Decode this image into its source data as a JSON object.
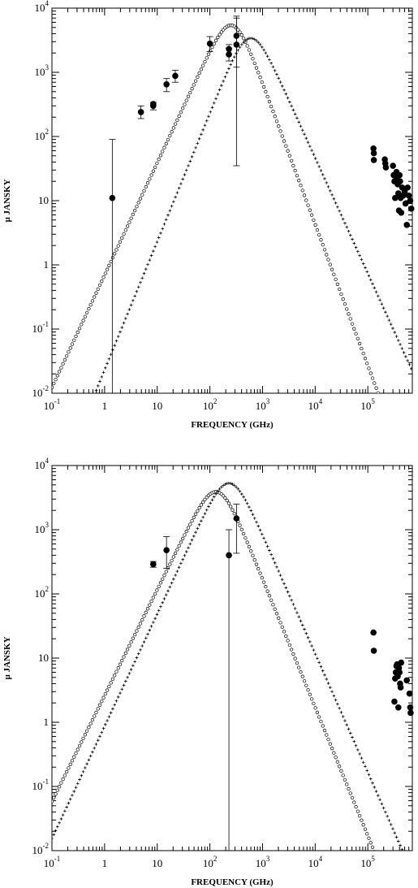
{
  "chart_data": [
    {
      "type": "scatter",
      "title": "",
      "xlabel": "FREQUENCY (GHz)",
      "ylabel": "µ JANSKY",
      "xscale": "log",
      "yscale": "log",
      "xlim": [
        0.1,
        700000
      ],
      "ylim": [
        0.01,
        10000
      ],
      "xticks": [
        {
          "value": 0.1,
          "base": "10",
          "exp": "-1"
        },
        {
          "value": 1,
          "base": "1",
          "exp": ""
        },
        {
          "value": 10,
          "base": "10",
          "exp": ""
        },
        {
          "value": 100,
          "base": "10",
          "exp": "2"
        },
        {
          "value": 1000,
          "base": "10",
          "exp": "3"
        },
        {
          "value": 10000,
          "base": "10",
          "exp": "4"
        },
        {
          "value": 100000,
          "base": "10",
          "exp": "5"
        }
      ],
      "yticks": [
        {
          "value": 0.01,
          "base": "10",
          "exp": "-2"
        },
        {
          "value": 0.1,
          "base": "10",
          "exp": "-1"
        },
        {
          "value": 1,
          "base": "1",
          "exp": ""
        },
        {
          "value": 10,
          "base": "10",
          "exp": ""
        },
        {
          "value": 100,
          "base": "10",
          "exp": "2"
        },
        {
          "value": 1000,
          "base": "10",
          "exp": "3"
        },
        {
          "value": 10000,
          "base": "10",
          "exp": "4"
        }
      ],
      "points": [
        {
          "x": 1.4,
          "y": 11,
          "ylo": 0.01,
          "yhi": 90
        },
        {
          "x": 4.9,
          "y": 240,
          "ylo": 190,
          "yhi": 300
        },
        {
          "x": 8.4,
          "y": 300,
          "ylo": 260,
          "yhi": 340
        },
        {
          "x": 8.4,
          "y": 320
        },
        {
          "x": 15,
          "y": 650,
          "ylo": 500,
          "yhi": 800
        },
        {
          "x": 22,
          "y": 880,
          "ylo": 700,
          "yhi": 1080
        },
        {
          "x": 100,
          "y": 2800,
          "ylo": 2100,
          "yhi": 3600
        },
        {
          "x": 230,
          "y": 1900,
          "ylo": 1500,
          "yhi": 2400
        },
        {
          "x": 230,
          "y": 2300,
          "ylo": 1900,
          "yhi": 2700
        },
        {
          "x": 320,
          "y": 3700,
          "ylo": 1200,
          "yhi": 7500
        },
        {
          "x": 320,
          "y": 2700,
          "ylo": 35,
          "yhi": 7000
        },
        {
          "x": 128000,
          "y": 65
        },
        {
          "x": 130000,
          "y": 55
        },
        {
          "x": 130000,
          "y": 43
        },
        {
          "x": 210000,
          "y": 44
        },
        {
          "x": 215000,
          "y": 38
        },
        {
          "x": 220000,
          "y": 33
        },
        {
          "x": 300000,
          "y": 35
        },
        {
          "x": 310000,
          "y": 25
        },
        {
          "x": 320000,
          "y": 20
        },
        {
          "x": 330000,
          "y": 11
        },
        {
          "x": 350000,
          "y": 28
        },
        {
          "x": 360000,
          "y": 22
        },
        {
          "x": 370000,
          "y": 18
        },
        {
          "x": 380000,
          "y": 13
        },
        {
          "x": 390000,
          "y": 7
        },
        {
          "x": 400000,
          "y": 25
        },
        {
          "x": 410000,
          "y": 20
        },
        {
          "x": 420000,
          "y": 11
        },
        {
          "x": 430000,
          "y": 6.5
        },
        {
          "x": 450000,
          "y": 16
        },
        {
          "x": 470000,
          "y": 12
        },
        {
          "x": 500000,
          "y": 14
        },
        {
          "x": 520000,
          "y": 9
        },
        {
          "x": 550000,
          "y": 4.2
        },
        {
          "x": 570000,
          "y": 16
        },
        {
          "x": 600000,
          "y": 12
        },
        {
          "x": 640000,
          "y": 10
        },
        {
          "x": 670000,
          "y": 7.5
        }
      ],
      "series": [
        {
          "marker": "circle",
          "peak_x": 250,
          "peak_y": 5400,
          "low_slope": 1.75,
          "high_slope": -2.2
        },
        {
          "marker": "cross",
          "peak_x": 600,
          "peak_y": 3400,
          "low_slope": 2.0,
          "high_slope": -1.8
        }
      ]
    },
    {
      "type": "scatter",
      "title": "",
      "xlabel": "FREQUENCY (GHz)",
      "ylabel": "µ JANSKY",
      "xscale": "log",
      "yscale": "log",
      "xlim": [
        0.1,
        700000
      ],
      "ylim": [
        0.01,
        10000
      ],
      "xticks": [
        {
          "value": 0.1,
          "base": "10",
          "exp": "-1"
        },
        {
          "value": 1,
          "base": "1",
          "exp": ""
        },
        {
          "value": 10,
          "base": "10",
          "exp": ""
        },
        {
          "value": 100,
          "base": "10",
          "exp": "2"
        },
        {
          "value": 1000,
          "base": "10",
          "exp": "3"
        },
        {
          "value": 10000,
          "base": "10",
          "exp": "4"
        },
        {
          "value": 100000,
          "base": "10",
          "exp": "5"
        }
      ],
      "yticks": [
        {
          "value": 0.01,
          "base": "10",
          "exp": "-2"
        },
        {
          "value": 0.1,
          "base": "10",
          "exp": "-1"
        },
        {
          "value": 1,
          "base": "1",
          "exp": ""
        },
        {
          "value": 10,
          "base": "10",
          "exp": ""
        },
        {
          "value": 100,
          "base": "10",
          "exp": "2"
        },
        {
          "value": 1000,
          "base": "10",
          "exp": "3"
        },
        {
          "value": 10000,
          "base": "10",
          "exp": "4"
        }
      ],
      "points": [
        {
          "x": 8.4,
          "y": 290,
          "ylo": 260,
          "yhi": 320
        },
        {
          "x": 15,
          "y": 480,
          "ylo": 250,
          "yhi": 780
        },
        {
          "x": 230,
          "y": 400,
          "ylo": 0.01,
          "yhi": 1000
        },
        {
          "x": 320,
          "y": 1500,
          "ylo": 430,
          "yhi": 2500
        },
        {
          "x": 128000,
          "y": 25
        },
        {
          "x": 130000,
          "y": 13
        },
        {
          "x": 320000,
          "y": 2.1
        },
        {
          "x": 330000,
          "y": 4.8
        },
        {
          "x": 340000,
          "y": 6
        },
        {
          "x": 350000,
          "y": 7.5
        },
        {
          "x": 360000,
          "y": 8
        },
        {
          "x": 370000,
          "y": 5.2
        },
        {
          "x": 380000,
          "y": 1.7
        },
        {
          "x": 390000,
          "y": 7
        },
        {
          "x": 400000,
          "y": 6
        },
        {
          "x": 410000,
          "y": 4
        },
        {
          "x": 420000,
          "y": 3.5
        },
        {
          "x": 430000,
          "y": 8.5
        },
        {
          "x": 550000,
          "y": 4.5
        },
        {
          "x": 620000,
          "y": 2.8
        },
        {
          "x": 640000,
          "y": 1.7
        },
        {
          "x": 650000,
          "y": 1.4
        }
      ],
      "series": [
        {
          "marker": "circle",
          "peak_x": 130,
          "peak_y": 3900,
          "low_slope": 1.65,
          "high_slope": -2.0
        },
        {
          "marker": "cross",
          "peak_x": 230,
          "peak_y": 5300,
          "low_slope": 1.75,
          "high_slope": -1.85
        }
      ]
    }
  ]
}
